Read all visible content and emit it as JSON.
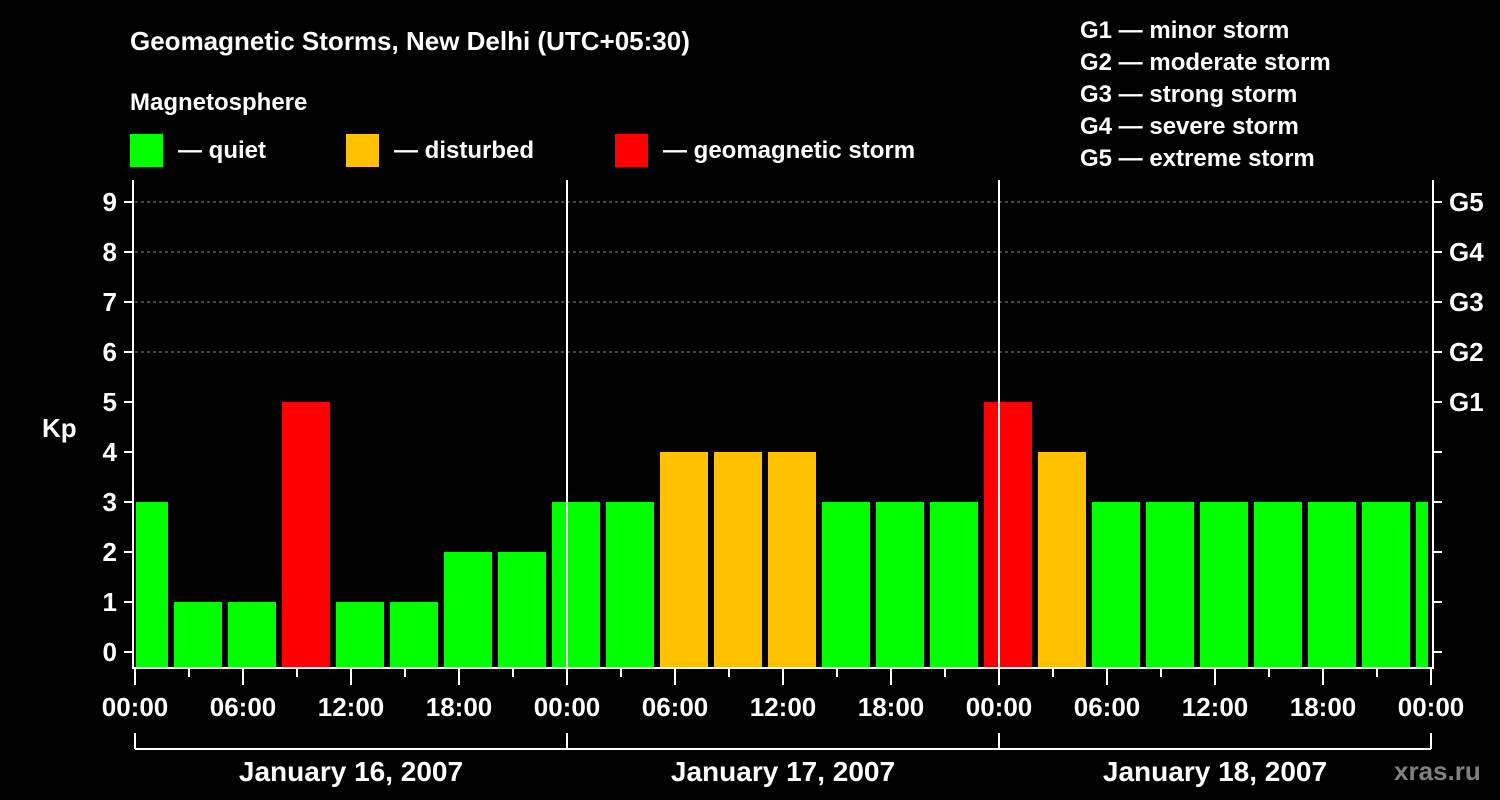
{
  "chart_data": {
    "type": "bar",
    "title": "Geomagnetic Storms, New Delhi (UTC+05:30)",
    "legend_title": "Magnetosphere",
    "legend": [
      {
        "label": "— quiet",
        "color": "#00ff00"
      },
      {
        "label": "— disturbed",
        "color": "#ffc000"
      },
      {
        "label": "— geomagnetic storm",
        "color": "#ff0000"
      }
    ],
    "g_scale_legend": [
      "G1 — minor storm",
      "G2 — moderate storm",
      "G3 — strong storm",
      "G4 — severe storm",
      "G5 — extreme storm"
    ],
    "ylabel": "Kp",
    "ylim": [
      0,
      9
    ],
    "yticks": [
      "0",
      "1",
      "2",
      "3",
      "4",
      "5",
      "6",
      "7",
      "8",
      "9"
    ],
    "right_ticks": [
      {
        "kp": 5,
        "label": "G1"
      },
      {
        "kp": 6,
        "label": "G2"
      },
      {
        "kp": 7,
        "label": "G3"
      },
      {
        "kp": 8,
        "label": "G4"
      },
      {
        "kp": 9,
        "label": "G5"
      }
    ],
    "xticks": [
      "00:00",
      "06:00",
      "12:00",
      "18:00",
      "00:00",
      "06:00",
      "12:00",
      "18:00",
      "00:00",
      "06:00",
      "12:00",
      "18:00",
      "00:00"
    ],
    "days": [
      "January 16, 2007",
      "January 17, 2007",
      "January 18, 2007"
    ],
    "bar_interval_hours": 3,
    "first_bar_start_hour": -1,
    "values": [
      3,
      1,
      1,
      5,
      1,
      1,
      2,
      2,
      3,
      3,
      4,
      4,
      4,
      3,
      3,
      3,
      5,
      4,
      3,
      3,
      3,
      3,
      3,
      3,
      3
    ],
    "thresholds": {
      "disturbed": 4,
      "storm": 5
    },
    "grid": "dashed horizontal at Kp 6-9",
    "watermark": "xras.ru"
  }
}
